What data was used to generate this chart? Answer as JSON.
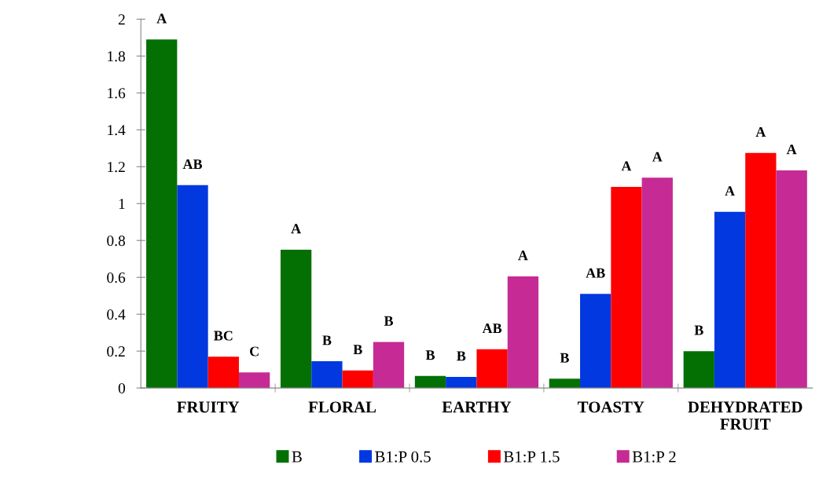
{
  "chart_data": {
    "type": "bar",
    "categories": [
      "FRUITY",
      "FLORAL",
      "EARTHY",
      "TOASTY",
      "DEHYDRATED\nFRUIT"
    ],
    "series": [
      {
        "name": "B",
        "color": "#047004",
        "values": [
          1.89,
          0.75,
          0.065,
          0.05,
          0.2
        ],
        "value_labels": [
          "A",
          "A",
          "B",
          "B",
          "B"
        ]
      },
      {
        "name": "B1:P 0.5",
        "color": "#0238e0",
        "values": [
          1.1,
          0.145,
          0.06,
          0.51,
          0.955
        ],
        "value_labels": [
          "AB",
          "B",
          "B",
          "AB",
          "A"
        ]
      },
      {
        "name": "B1:P 1.5",
        "color": "#fe0000",
        "values": [
          0.17,
          0.095,
          0.21,
          1.09,
          1.275
        ],
        "value_labels": [
          "BC",
          "B",
          "AB",
          "A",
          "A"
        ]
      },
      {
        "name": "B1:P 2",
        "color": "#c62a94",
        "values": [
          0.085,
          0.25,
          0.605,
          1.14,
          1.18
        ],
        "value_labels": [
          "C",
          "B",
          "A",
          "A",
          "A"
        ]
      }
    ],
    "ylim": [
      0,
      2
    ],
    "yticks": [
      0,
      0.2,
      0.4,
      0.6,
      0.8,
      1,
      1.2,
      1.4,
      1.6,
      1.8,
      2
    ],
    "grid": false,
    "legend": "bottom"
  }
}
